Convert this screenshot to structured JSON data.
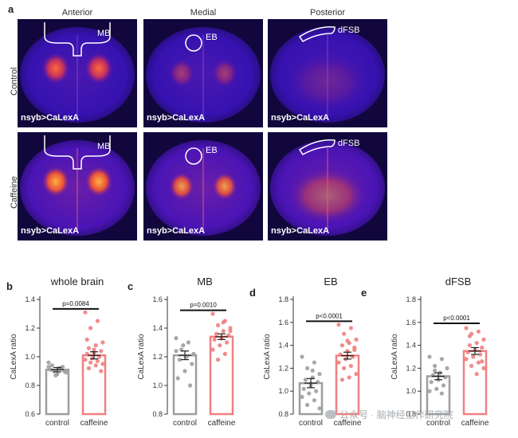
{
  "figure": {
    "panel_a_letter": "a",
    "columns": [
      "Anterior",
      "Medial",
      "Posterior"
    ],
    "rows": [
      "Control",
      "Caffeine"
    ],
    "tile_label": "nsyb>CaLexA",
    "regions": [
      "MB",
      "EB",
      "dFSB"
    ]
  },
  "colors": {
    "control": "#9e9e9e",
    "caffeine": "#f08080",
    "brain_bg": "#3a11b8"
  },
  "chart_data": [
    {
      "type": "bar",
      "letter": "b",
      "title": "whole brain",
      "ylabel": "CaLexA ratio",
      "categories": [
        "control",
        "caffeine"
      ],
      "values": [
        0.91,
        1.01
      ],
      "sem": [
        0.015,
        0.025
      ],
      "ylim": [
        0.6,
        1.4
      ],
      "yticks": [
        0.6,
        0.8,
        1.0,
        1.2,
        1.4
      ],
      "pvalue": "p=0.0084",
      "points": [
        [
          0.93,
          0.92,
          0.9,
          0.89,
          0.92,
          0.94,
          0.9,
          0.88,
          0.91,
          0.93,
          0.87,
          0.96
        ],
        [
          1.31,
          1.25,
          1.2,
          1.1,
          1.08,
          1.06,
          1.04,
          1.03,
          1.02,
          1.0,
          0.99,
          0.98,
          0.97,
          0.96,
          0.95,
          0.94,
          0.92,
          0.9,
          1.05,
          1.12
        ]
      ]
    },
    {
      "type": "bar",
      "letter": "c",
      "title": "MB",
      "ylabel": "CaLexA ratio",
      "categories": [
        "control",
        "caffeine"
      ],
      "values": [
        1.21,
        1.34
      ],
      "sem": [
        0.03,
        0.02
      ],
      "ylim": [
        0.8,
        1.6
      ],
      "yticks": [
        0.8,
        1.0,
        1.2,
        1.4,
        1.6
      ],
      "pvalue": "p=0.0010",
      "points": [
        [
          1.33,
          1.3,
          1.25,
          1.22,
          1.2,
          1.18,
          1.15,
          1.1,
          1.05,
          1.0,
          1.28,
          1.24
        ],
        [
          1.5,
          1.45,
          1.42,
          1.4,
          1.38,
          1.36,
          1.35,
          1.33,
          1.32,
          1.3,
          1.28,
          1.25,
          1.22,
          1.18,
          1.38,
          1.44
        ]
      ]
    },
    {
      "type": "bar",
      "letter": "d",
      "title": "EB",
      "ylabel": "CaLexA ratio",
      "categories": [
        "control",
        "caffeine"
      ],
      "values": [
        1.07,
        1.31
      ],
      "sem": [
        0.04,
        0.03
      ],
      "ylim": [
        0.8,
        1.8
      ],
      "yticks": [
        0.8,
        1.0,
        1.2,
        1.4,
        1.6,
        1.8
      ],
      "pvalue": "p<0.0001",
      "points": [
        [
          1.3,
          1.25,
          1.2,
          1.15,
          1.12,
          1.1,
          1.08,
          1.05,
          1.02,
          1.0,
          0.98,
          0.95,
          0.92,
          0.88,
          0.85,
          1.18
        ],
        [
          1.58,
          1.55,
          1.5,
          1.45,
          1.42,
          1.4,
          1.38,
          1.35,
          1.32,
          1.3,
          1.28,
          1.25,
          1.22,
          1.2,
          1.15,
          1.12,
          1.1,
          1.36,
          1.44
        ]
      ]
    },
    {
      "type": "bar",
      "letter": "e",
      "title": "dFSB",
      "ylabel": "CaLexA ratio",
      "categories": [
        "control",
        "caffeine"
      ],
      "values": [
        1.13,
        1.35
      ],
      "sem": [
        0.03,
        0.03
      ],
      "ylim": [
        0.8,
        1.8
      ],
      "yticks": [
        0.8,
        1.0,
        1.2,
        1.4,
        1.6,
        1.8
      ],
      "pvalue": "p<0.0001",
      "points": [
        [
          1.3,
          1.28,
          1.22,
          1.2,
          1.16,
          1.14,
          1.12,
          1.1,
          1.08,
          1.05,
          1.02,
          1.0,
          0.98,
          1.18
        ],
        [
          1.55,
          1.52,
          1.5,
          1.45,
          1.42,
          1.4,
          1.38,
          1.36,
          1.34,
          1.32,
          1.3,
          1.28,
          1.25,
          1.22,
          1.2,
          1.15,
          1.48,
          1.26
        ]
      ]
    }
  ],
  "watermark": "公众号 · 脑神经工作研究院"
}
